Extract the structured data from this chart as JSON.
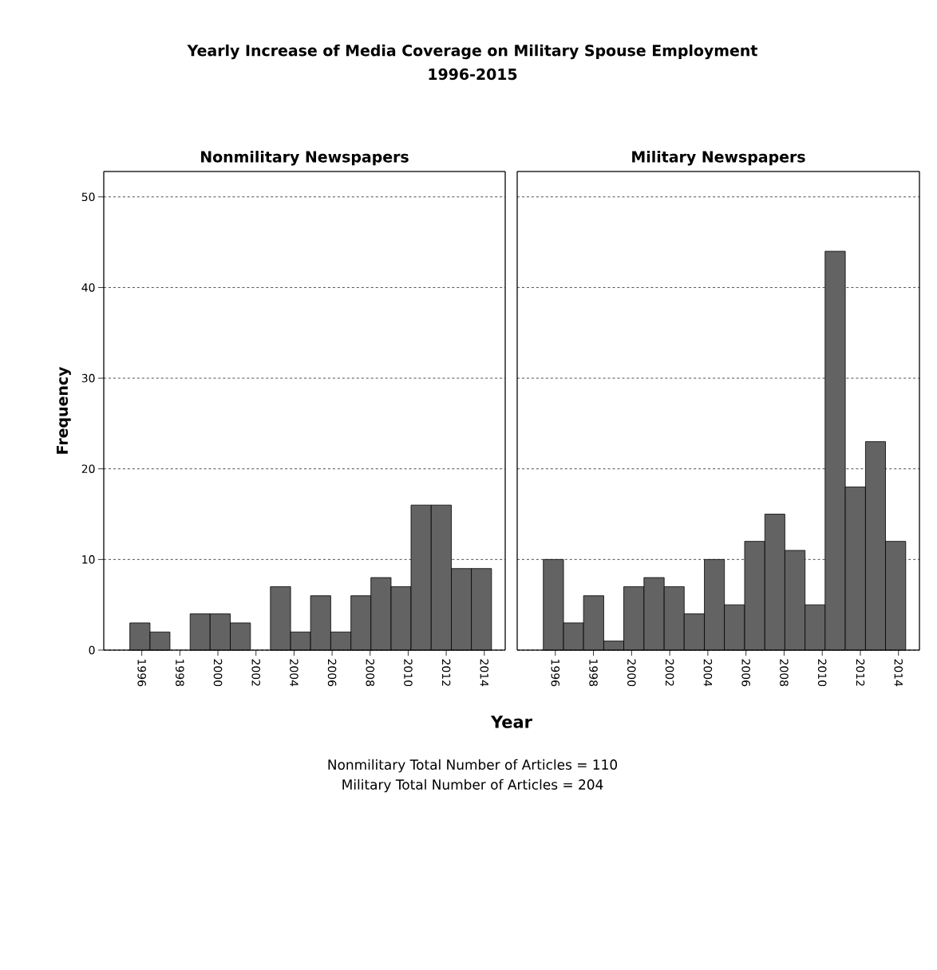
{
  "chart_data": [
    {
      "type": "histogram",
      "title": "Nonmilitary Newspapers",
      "xlabel": "Year",
      "ylabel": "Frequency",
      "annotations": [
        "Yearly Increase of Media Coverage on Military Spouse Employment",
        "1996-2015",
        "Nonmilitary Total Number of Articles = 110",
        "Military Total Number of Articles = 204"
      ],
      "bins": [
        1995.37,
        1996.43,
        1997.48,
        1998.54,
        1999.59,
        2000.65,
        2001.71,
        2002.76,
        2003.82,
        2004.87,
        2005.93,
        2006.99,
        2008.04,
        2009.1,
        2010.15,
        2011.21,
        2012.27,
        2013.32,
        2014.38
      ],
      "values": [
        3,
        2,
        0,
        4,
        4,
        3,
        0,
        7,
        2,
        6,
        2,
        6,
        8,
        7,
        16,
        16,
        9,
        9
      ],
      "color": "#636363",
      "xlim": [
        1994.0,
        2015.1
      ],
      "ylim": [
        0,
        52.8
      ],
      "xticks": [
        1996,
        1998,
        2000,
        2002,
        2004,
        2006,
        2008,
        2010,
        2012,
        2014
      ],
      "yticks": [
        0,
        10,
        20,
        30,
        40,
        50
      ],
      "grid": "y",
      "line_style": "dashed"
    },
    {
      "type": "histogram",
      "title": "Military Newspapers",
      "bins": [
        1995.37,
        1996.43,
        1997.48,
        1998.54,
        1999.59,
        2000.65,
        2001.71,
        2002.76,
        2003.82,
        2004.87,
        2005.93,
        2006.99,
        2008.04,
        2009.1,
        2010.15,
        2011.21,
        2012.27,
        2013.32,
        2014.38
      ],
      "values": [
        10,
        3,
        6,
        1,
        7,
        8,
        7,
        4,
        10,
        5,
        12,
        15,
        11,
        5,
        44,
        18,
        23,
        12
      ],
      "color": "#636363",
      "xlim": [
        1994.0,
        2015.1
      ],
      "ylim": [
        0,
        52.8
      ],
      "xticks": [
        1996,
        1998,
        2000,
        2002,
        2004,
        2006,
        2008,
        2010,
        2012,
        2014
      ],
      "yticks": [
        0,
        10,
        20,
        30,
        40,
        50
      ],
      "grid": "y",
      "line_style": "dashed",
      "tick_labels": "x"
    }
  ]
}
